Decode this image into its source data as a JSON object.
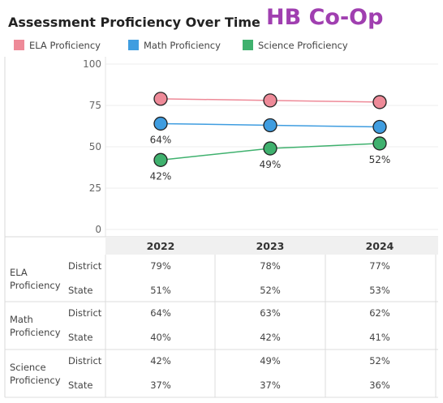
{
  "title": "Assessment Proficiency Over Time",
  "brand": "HB Co-Op",
  "legend": [
    {
      "label": "ELA Proficiency",
      "color": "#ee8a98"
    },
    {
      "label": "Math Proficiency",
      "color": "#3f9de0"
    },
    {
      "label": "Science Proficiency",
      "color": "#3fb16e"
    }
  ],
  "chart_data": {
    "type": "line",
    "categories": [
      "2022",
      "2023",
      "2024"
    ],
    "series": [
      {
        "name": "ELA Proficiency",
        "values": [
          79,
          78,
          77
        ],
        "color": "#ee8a98",
        "labels": [
          "",
          "",
          ""
        ]
      },
      {
        "name": "Math Proficiency",
        "values": [
          64,
          63,
          62
        ],
        "color": "#3f9de0",
        "labels": [
          "64%",
          "",
          ""
        ]
      },
      {
        "name": "Science Proficiency",
        "values": [
          42,
          49,
          52
        ],
        "color": "#3fb16e",
        "labels": [
          "42%",
          "49%",
          "52%"
        ]
      }
    ],
    "ylim": [
      0,
      100
    ],
    "yticks": [
      0,
      25,
      50,
      75,
      100
    ],
    "grid": true
  },
  "table": {
    "rows": [
      {
        "subject": "ELA Proficiency",
        "district_label": "District",
        "state_label": "State",
        "district": [
          "79%",
          "78%",
          "77%"
        ],
        "state": [
          "51%",
          "52%",
          "53%"
        ]
      },
      {
        "subject": "Math Proficiency",
        "district_label": "District",
        "state_label": "State",
        "district": [
          "64%",
          "63%",
          "62%"
        ],
        "state": [
          "40%",
          "42%",
          "41%"
        ]
      },
      {
        "subject": "Science Proficiency",
        "district_label": "District",
        "state_label": "State",
        "district": [
          "42%",
          "49%",
          "52%"
        ],
        "state": [
          "37%",
          "37%",
          "36%"
        ]
      }
    ]
  }
}
